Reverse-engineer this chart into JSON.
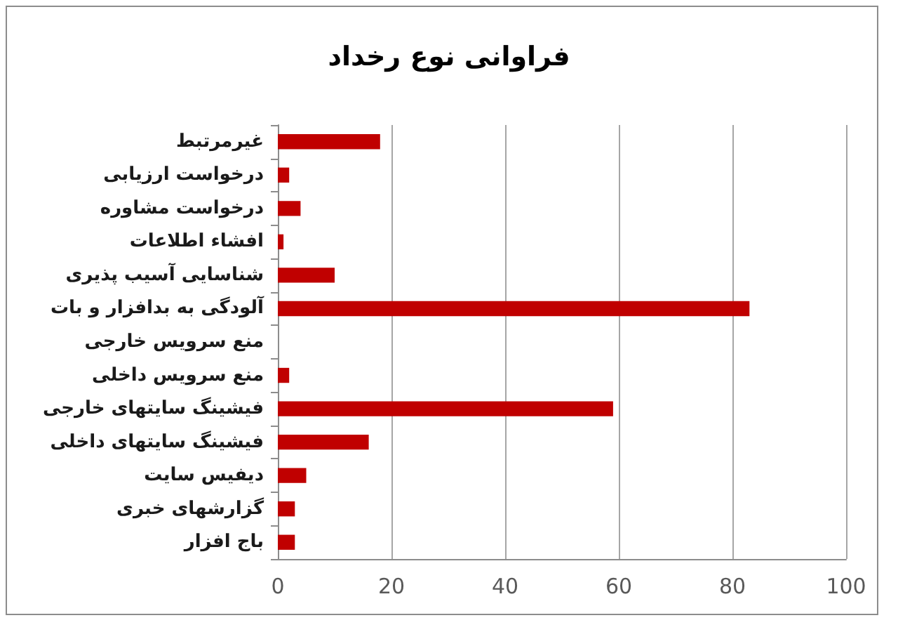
{
  "chart_data": {
    "type": "bar",
    "orientation": "horizontal",
    "title": "فراوانی نوع رخداد",
    "categories": [
      "غیرمرتبط",
      "درخواست ارزیابی",
      "درخواست مشاوره",
      "افشاء اطلاعات",
      "شناسایی آسیب پذیری",
      "آلودگی به بدافزار و بات",
      "منع سرویس خارجی",
      "منع سرویس داخلی",
      "فیشینگ سایتهای خارجی",
      "فیشینگ سایتهای داخلی",
      "دیفیس سایت",
      "گزارشهای خبری",
      "باج افزار"
    ],
    "values": [
      18,
      2,
      4,
      1,
      10,
      83,
      0,
      2,
      59,
      16,
      5,
      3,
      3
    ],
    "color": "#c00000",
    "xlim": [
      0,
      100
    ],
    "xticks": [
      0,
      20,
      40,
      60,
      80,
      100
    ],
    "grid": "x"
  }
}
